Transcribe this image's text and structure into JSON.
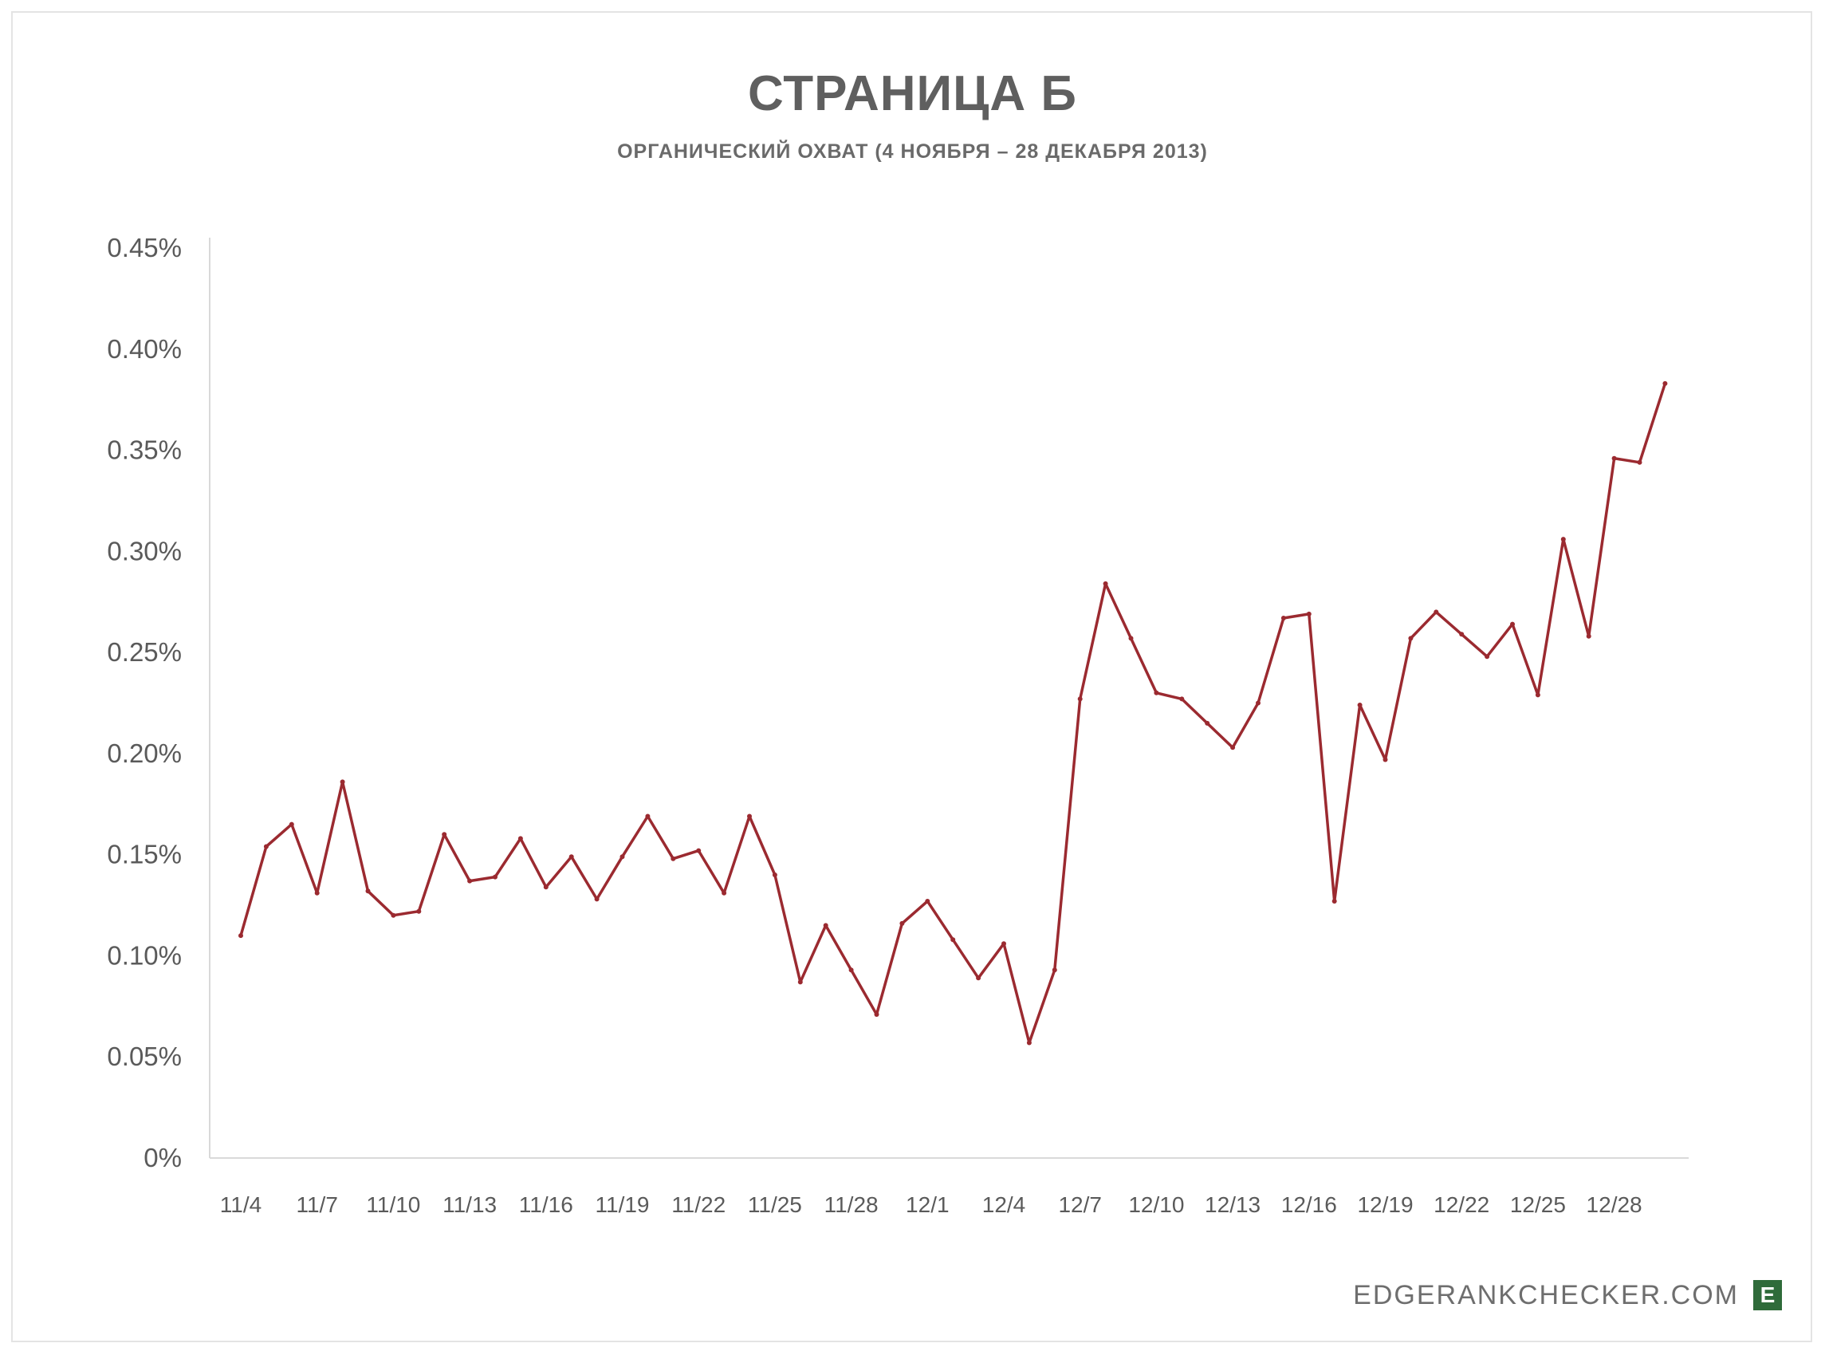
{
  "chart_data": {
    "type": "line",
    "title": "СТРАНИЦА Б",
    "subtitle": "ОРГАНИЧЕСКИЙ ОХВАТ (4 НОЯБРЯ – 28 ДЕКАБРЯ 2013)",
    "xlabel": "",
    "ylabel": "",
    "ylim": [
      0,
      0.45
    ],
    "y_ticks": [
      0,
      0.05,
      0.1,
      0.15,
      0.2,
      0.25,
      0.3,
      0.35,
      0.4,
      0.45
    ],
    "y_tick_labels": [
      "0%",
      "0.05%",
      "0.10%",
      "0.15%",
      "0.20%",
      "0.25%",
      "0.30%",
      "0.35%",
      "0.40%",
      "0.45%"
    ],
    "x_tick_labels": [
      "11/4",
      "11/7",
      "11/10",
      "11/13",
      "11/16",
      "11/19",
      "11/22",
      "11/25",
      "11/28",
      "12/1",
      "12/4",
      "12/7",
      "12/10",
      "12/13",
      "12/16",
      "12/19",
      "12/22",
      "12/25",
      "12/28"
    ],
    "x_tick_step_days": 3,
    "line_color": "#9b2a30",
    "grid": false,
    "x": [
      "11/4",
      "11/5",
      "11/6",
      "11/7",
      "11/8",
      "11/9",
      "11/10",
      "11/11",
      "11/12",
      "11/13",
      "11/14",
      "11/15",
      "11/16",
      "11/17",
      "11/18",
      "11/19",
      "11/20",
      "11/21",
      "11/22",
      "11/23",
      "11/24",
      "11/25",
      "11/26",
      "11/27",
      "11/28",
      "11/29",
      "11/30",
      "12/1",
      "12/2",
      "12/3",
      "12/4",
      "12/5",
      "12/6",
      "12/7",
      "12/8",
      "12/9",
      "12/10",
      "12/11",
      "12/12",
      "12/13",
      "12/14",
      "12/15",
      "12/16",
      "12/17",
      "12/18",
      "12/19",
      "12/20",
      "12/21",
      "12/22",
      "12/23",
      "12/24",
      "12/25",
      "12/26",
      "12/27",
      "12/28",
      "12/29",
      "12/30"
    ],
    "series": [
      {
        "values": [
          0.11,
          0.154,
          0.165,
          0.131,
          0.186,
          0.132,
          0.12,
          0.122,
          0.16,
          0.137,
          0.139,
          0.158,
          0.134,
          0.149,
          0.128,
          0.149,
          0.169,
          0.148,
          0.152,
          0.131,
          0.169,
          0.14,
          0.087,
          0.115,
          0.093,
          0.071,
          0.116,
          0.127,
          0.108,
          0.089,
          0.106,
          0.057,
          0.093,
          0.227,
          0.284,
          0.257,
          0.23,
          0.227,
          0.215,
          0.203,
          0.225,
          0.267,
          0.269,
          0.127,
          0.224,
          0.197,
          0.257,
          0.27,
          0.259,
          0.248,
          0.264,
          0.229,
          0.306,
          0.258,
          0.346,
          0.344,
          0.383
        ]
      }
    ]
  },
  "watermark": {
    "text": "EDGERANKCHECKER.COM",
    "logo_letter": "E",
    "logo_color": "#2f6b3a"
  }
}
